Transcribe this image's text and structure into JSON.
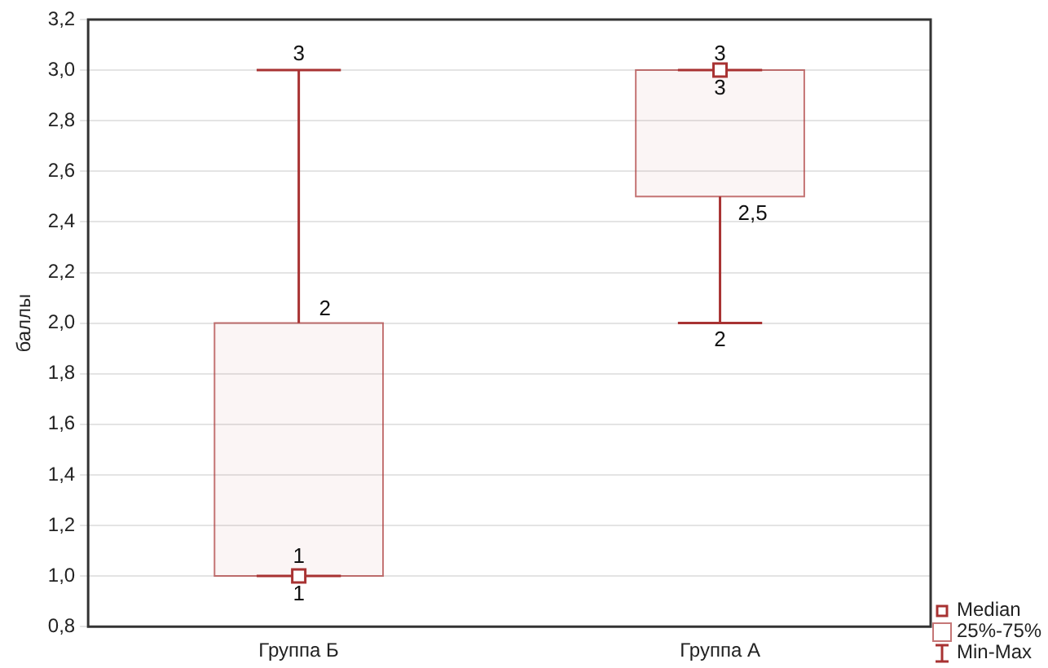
{
  "chart_data": {
    "type": "box",
    "ylabel": "баллы",
    "categories": [
      "Группа Б",
      "Группа А"
    ],
    "color": "#a83232",
    "boxes": [
      {
        "low": 1,
        "q1": 1,
        "median": 1,
        "q3": 2,
        "high": 3
      },
      {
        "low": 2,
        "q1": 2.5,
        "median": 3,
        "q3": 3,
        "high": 3
      }
    ],
    "ylim": [
      0.8,
      3.2
    ],
    "yticks": [
      {
        "value": 0.8,
        "label": "0,8"
      },
      {
        "value": 1.0,
        "label": "1,0"
      },
      {
        "value": 1.2,
        "label": "1,2"
      },
      {
        "value": 1.4,
        "label": "1,4"
      },
      {
        "value": 1.6,
        "label": "1,6"
      },
      {
        "value": 1.8,
        "label": "1,8"
      },
      {
        "value": 2.0,
        "label": "2,0"
      },
      {
        "value": 2.2,
        "label": "2,2"
      },
      {
        "value": 2.4,
        "label": "2,4"
      },
      {
        "value": 2.6,
        "label": "2,6"
      },
      {
        "value": 2.8,
        "label": "2,8"
      },
      {
        "value": 3.0,
        "label": "3,0"
      },
      {
        "value": 3.2,
        "label": "3,2"
      }
    ],
    "grid": "y",
    "annotations": [
      {
        "text": "3",
        "x": "Группа Б",
        "y": 3
      },
      {
        "text": "2",
        "x": "Группа Б",
        "y": 2
      },
      {
        "text": "1",
        "x": "Группа Б",
        "y": 1
      },
      {
        "text": "1",
        "x": "Группа Б",
        "y": 1
      },
      {
        "text": "3",
        "x": "Группа А",
        "y": 3
      },
      {
        "text": "3",
        "x": "Группа А",
        "y": 3
      },
      {
        "text": "2,5",
        "x": "Группа А",
        "y": 2.5
      },
      {
        "text": "2",
        "x": "Группа А",
        "y": 2
      },
      "Median",
      "25%-75%",
      "Min-Max"
    ]
  }
}
